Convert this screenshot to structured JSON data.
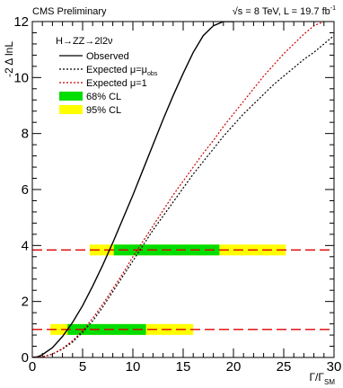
{
  "header": {
    "left": "CMS Preliminary",
    "right_prefix": "√s = 8 TeV, L = 19.7 fb",
    "right_sup": "-1"
  },
  "chart_data": {
    "type": "line",
    "process": "H→ZZ→2l2ν",
    "xlabel": "Γ/Γ",
    "xlabel_sub": "SM",
    "ylabel": "-2 Δ lnL",
    "xlim": [
      0,
      30
    ],
    "ylim": [
      0,
      12
    ],
    "x_ticks": [
      0,
      5,
      10,
      15,
      20,
      25,
      30
    ],
    "y_ticks": [
      0,
      2,
      4,
      6,
      8,
      10,
      12
    ],
    "grid": false,
    "legend_position": "top-left",
    "series": [
      {
        "name": "Observed",
        "color": "#000000",
        "dash": "solid",
        "x": [
          0,
          0.5,
          1,
          2,
          3,
          4,
          5,
          6,
          7,
          8,
          9,
          10,
          11,
          12,
          13,
          14,
          15,
          16,
          17,
          18,
          19,
          20
        ],
        "y": [
          0.0,
          0.02,
          0.1,
          0.35,
          0.75,
          1.25,
          1.85,
          2.55,
          3.3,
          4.1,
          4.95,
          5.8,
          6.7,
          7.6,
          8.5,
          9.35,
          10.15,
          10.9,
          11.5,
          11.85,
          12.0,
          12.0
        ]
      },
      {
        "name": "Expected μ=μ",
        "name_sub": "obs",
        "color": "#000000",
        "dash": "dotted",
        "x": [
          0,
          1,
          2,
          3,
          4,
          5,
          6,
          7,
          8,
          9,
          10,
          11,
          12,
          13,
          14,
          15,
          16,
          17,
          18,
          19,
          20,
          21,
          22,
          23,
          24,
          25,
          26,
          27,
          28,
          29,
          30
        ],
        "y": [
          0.0,
          0.02,
          0.12,
          0.3,
          0.55,
          0.9,
          1.3,
          1.8,
          2.35,
          2.9,
          3.45,
          4.0,
          4.55,
          5.05,
          5.55,
          6.05,
          6.55,
          7.0,
          7.45,
          7.9,
          8.3,
          8.7,
          9.05,
          9.4,
          9.75,
          10.05,
          10.35,
          10.65,
          10.9,
          11.2,
          11.5
        ]
      },
      {
        "name": "Expected μ=1",
        "color": "#cc0000",
        "dash": "dotted",
        "x": [
          0,
          1,
          2,
          3,
          4,
          5,
          6,
          7,
          8,
          9,
          10,
          11,
          12,
          13,
          14,
          15,
          16,
          17,
          18,
          19,
          20,
          21,
          22,
          23,
          24,
          25,
          26,
          27,
          28,
          29
        ],
        "y": [
          0.0,
          0.02,
          0.12,
          0.32,
          0.6,
          0.95,
          1.4,
          1.9,
          2.45,
          3.0,
          3.6,
          4.15,
          4.7,
          5.25,
          5.8,
          6.3,
          6.8,
          7.3,
          7.75,
          8.25,
          8.7,
          9.15,
          9.6,
          10.05,
          10.45,
          10.85,
          11.2,
          11.55,
          11.85,
          12.0
        ]
      }
    ],
    "reference_lines": [
      {
        "y": 1.0,
        "color": "#e00000",
        "dash": "long-dash"
      },
      {
        "y": 3.84,
        "color": "#e00000",
        "dash": "long-dash"
      }
    ],
    "bands": [
      {
        "name": "95% CL",
        "level": 1.0,
        "x": [
          1.8,
          16.0
        ],
        "color": "#ffff00"
      },
      {
        "name": "68% CL",
        "level": 1.0,
        "x": [
          3.5,
          11.3
        ],
        "color": "#00dd00"
      },
      {
        "name": "95% CL",
        "level": 3.84,
        "x": [
          5.7,
          25.2
        ],
        "color": "#ffff00"
      },
      {
        "name": "68% CL",
        "level": 3.84,
        "x": [
          8.1,
          18.6
        ],
        "color": "#00dd00"
      }
    ],
    "legend": [
      {
        "label": "Observed",
        "kind": "line",
        "color": "#000000",
        "dash": "solid"
      },
      {
        "label": "Expected μ=μ",
        "sub": "obs",
        "kind": "line",
        "color": "#000000",
        "dash": "dotted"
      },
      {
        "label": "Expected μ=1",
        "kind": "line",
        "color": "#cc0000",
        "dash": "dotted"
      },
      {
        "label": "68% CL",
        "kind": "box",
        "color": "#00dd00"
      },
      {
        "label": "95% CL",
        "kind": "box",
        "color": "#ffff00"
      }
    ]
  }
}
